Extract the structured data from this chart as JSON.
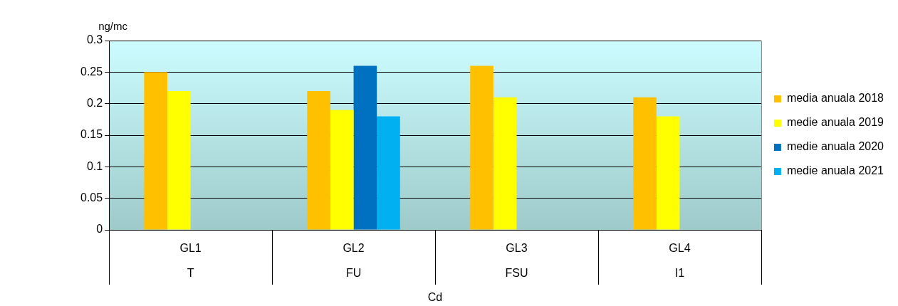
{
  "chart_data": {
    "type": "bar",
    "ylabel": "ng/mc",
    "xlabel": "Cd",
    "categories": [
      "GL1\nT",
      "GL2\nFU",
      "GL3\nFSU",
      "GL4\nI1"
    ],
    "series": [
      {
        "name": "media anuala 2018",
        "color": "#ffc000",
        "values": [
          0.25,
          0.22,
          0.26,
          0.21
        ]
      },
      {
        "name": "medie anuala 2019",
        "color": "#ffff00",
        "values": [
          0.22,
          0.19,
          0.21,
          0.18
        ]
      },
      {
        "name": "medie anuala 2020",
        "color": "#0070c0",
        "values": [
          null,
          0.26,
          null,
          null
        ]
      },
      {
        "name": "medie anuala 2021",
        "color": "#00b0f0",
        "values": [
          null,
          0.18,
          null,
          null
        ]
      }
    ],
    "ylim": [
      0,
      0.3
    ],
    "yticks": [
      0,
      0.05,
      0.1,
      0.15,
      0.2,
      0.25,
      0.3
    ],
    "grid": "y",
    "legend": "right"
  }
}
